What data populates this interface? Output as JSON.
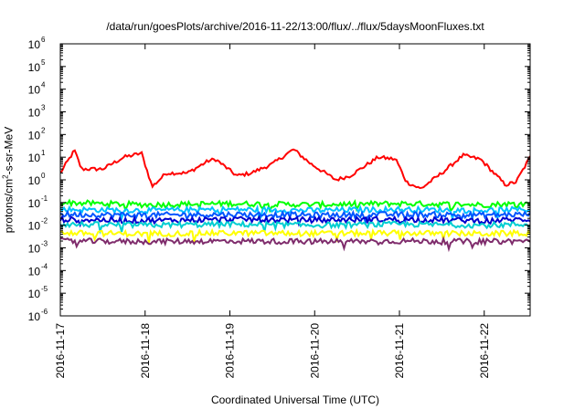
{
  "chart_data": {
    "type": "line",
    "title": "/data/run/goesPlots/archive/2016-11-22/13:00/flux/../flux/5daysMoonFluxes.txt",
    "xlabel": "Coordinated Universal Time (UTC)",
    "ylabel_base": "protons/cm",
    "ylabel_sup": "2",
    "ylabel_rest": "-s-sr-MeV",
    "y_scale": "log",
    "ylim": [
      1e-06,
      1000000.0
    ],
    "y_ticks": [
      {
        "base": "10",
        "exp": "-6"
      },
      {
        "base": "10",
        "exp": "-5"
      },
      {
        "base": "10",
        "exp": "-4"
      },
      {
        "base": "10",
        "exp": "-3"
      },
      {
        "base": "10",
        "exp": "-2"
      },
      {
        "base": "10",
        "exp": "-1"
      },
      {
        "base": "10",
        "exp": "0"
      },
      {
        "base": "10",
        "exp": "1"
      },
      {
        "base": "10",
        "exp": "2"
      },
      {
        "base": "10",
        "exp": "3"
      },
      {
        "base": "10",
        "exp": "4"
      },
      {
        "base": "10",
        "exp": "5"
      },
      {
        "base": "10",
        "exp": "6"
      }
    ],
    "xlim": [
      "2016-11-17",
      "2016-11-22 13:00"
    ],
    "x_ticks": [
      "2016-11-17",
      "2016-11-18",
      "2016-11-19",
      "2016-11-20",
      "2016-11-21",
      "2016-11-22"
    ],
    "grid": false,
    "legend": "none",
    "series": [
      {
        "color": "#ff0000",
        "x": [
          "2016-11-17 00:00",
          "2016-11-17 04:00",
          "2016-11-17 06:00",
          "2016-11-17 12:00",
          "2016-11-17 18:00",
          "2016-11-17 23:00",
          "2016-11-18 02:00",
          "2016-11-18 06:00",
          "2016-11-18 12:00",
          "2016-11-18 18:00",
          "2016-11-18 20:00",
          "2016-11-19 02:00",
          "2016-11-19 06:00",
          "2016-11-19 12:00",
          "2016-11-19 18:00",
          "2016-11-19 23:00",
          "2016-11-20 06:00",
          "2016-11-20 10:00",
          "2016-11-20 18:00",
          "2016-11-20 23:00",
          "2016-11-21 02:00",
          "2016-11-21 06:00",
          "2016-11-21 12:00",
          "2016-11-21 18:00",
          "2016-11-21 23:00",
          "2016-11-22 06:00",
          "2016-11-22 09:00",
          "2016-11-22 13:00"
        ],
        "y": [
          2,
          20,
          3,
          3,
          10,
          15,
          0.5,
          2,
          2,
          7,
          8,
          1.5,
          2,
          5,
          22,
          5,
          1,
          1.5,
          10,
          8,
          0.8,
          0.4,
          2,
          12,
          8,
          0.6,
          0.8,
          10
        ]
      },
      {
        "color": "#00ff00",
        "x": [
          "2016-11-17 00:00",
          "2016-11-18 00:00",
          "2016-11-19 00:00",
          "2016-11-20 00:00",
          "2016-11-21 00:00",
          "2016-11-22 00:00",
          "2016-11-22 13:00"
        ],
        "y": [
          0.1,
          0.08,
          0.09,
          0.08,
          0.09,
          0.08,
          0.09
        ]
      },
      {
        "color": "#00bfff",
        "x": [
          "2016-11-17 00:00",
          "2016-11-18 00:00",
          "2016-11-19 00:00",
          "2016-11-20 00:00",
          "2016-11-21 00:00",
          "2016-11-22 00:00",
          "2016-11-22 13:00"
        ],
        "y": [
          0.05,
          0.045,
          0.05,
          0.045,
          0.05,
          0.045,
          0.05
        ]
      },
      {
        "color": "#0055ff",
        "x": [
          "2016-11-17 00:00",
          "2016-11-18 00:00",
          "2016-11-19 00:00",
          "2016-11-20 00:00",
          "2016-11-21 00:00",
          "2016-11-22 00:00",
          "2016-11-22 13:00"
        ],
        "y": [
          0.03,
          0.028,
          0.03,
          0.028,
          0.03,
          0.028,
          0.03
        ]
      },
      {
        "color": "#0000cd",
        "x": [
          "2016-11-17 00:00",
          "2016-11-18 00:00",
          "2016-11-19 00:00",
          "2016-11-20 00:00",
          "2016-11-21 00:00",
          "2016-11-22 00:00",
          "2016-11-22 13:00"
        ],
        "y": [
          0.018,
          0.016,
          0.018,
          0.017,
          0.018,
          0.016,
          0.018
        ]
      },
      {
        "color": "#00ced1",
        "x": [
          "2016-11-17 00:00",
          "2016-11-18 00:00",
          "2016-11-19 00:00",
          "2016-11-20 00:00",
          "2016-11-21 00:00",
          "2016-11-22 00:00",
          "2016-11-22 13:00"
        ],
        "y": [
          0.011,
          0.01,
          0.011,
          0.01,
          0.011,
          0.01,
          0.011
        ]
      },
      {
        "color": "#ffff00",
        "x": [
          "2016-11-17 00:00",
          "2016-11-18 00:00",
          "2016-11-19 00:00",
          "2016-11-20 00:00",
          "2016-11-21 00:00",
          "2016-11-22 00:00",
          "2016-11-22 13:00"
        ],
        "y": [
          0.0045,
          0.0042,
          0.0045,
          0.0043,
          0.0045,
          0.0042,
          0.0045
        ]
      },
      {
        "color": "#7f2c6c",
        "x": [
          "2016-11-17 00:00",
          "2016-11-18 00:00",
          "2016-11-19 00:00",
          "2016-11-20 00:00",
          "2016-11-21 00:00",
          "2016-11-22 00:00",
          "2016-11-22 13:00"
        ],
        "y": [
          0.002,
          0.0019,
          0.002,
          0.0019,
          0.002,
          0.0019,
          0.002
        ]
      }
    ]
  }
}
